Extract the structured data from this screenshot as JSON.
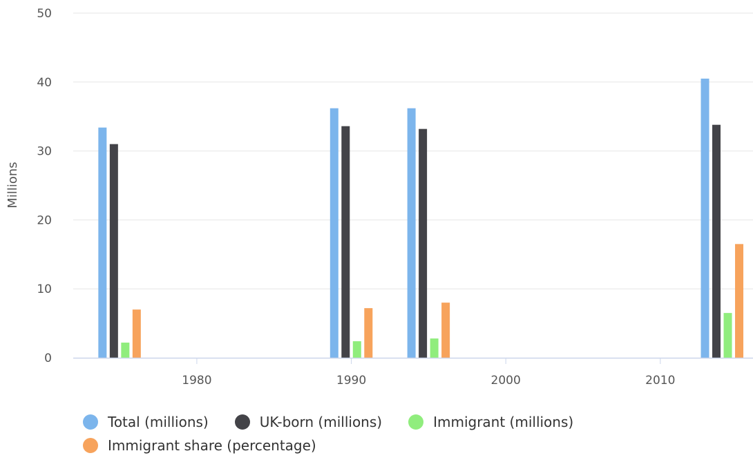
{
  "chart_data": {
    "type": "bar",
    "ylabel": "Millions",
    "xlabel": "",
    "ylim": [
      0,
      50
    ],
    "yticks": [
      0,
      10,
      20,
      30,
      40,
      50
    ],
    "xlim": [
      1972,
      2016
    ],
    "xticks": [
      1980,
      1990,
      2000,
      2010
    ],
    "grid": true,
    "legend_position": "bottom",
    "x": [
      1975,
      1990,
      1995,
      2014
    ],
    "series": [
      {
        "name": "Total (millions)",
        "color": "#7cb5ec",
        "values": [
          33.4,
          36.2,
          36.2,
          40.5
        ]
      },
      {
        "name": "UK-born (millions)",
        "color": "#434348",
        "values": [
          31.0,
          33.6,
          33.2,
          33.8
        ]
      },
      {
        "name": "Immigrant (millions)",
        "color": "#90ed7d",
        "values": [
          2.2,
          2.4,
          2.8,
          6.5
        ]
      },
      {
        "name": "Immigrant share (percentage)",
        "color": "#f7a35c",
        "values": [
          7.0,
          7.2,
          8.0,
          16.5
        ]
      }
    ]
  }
}
